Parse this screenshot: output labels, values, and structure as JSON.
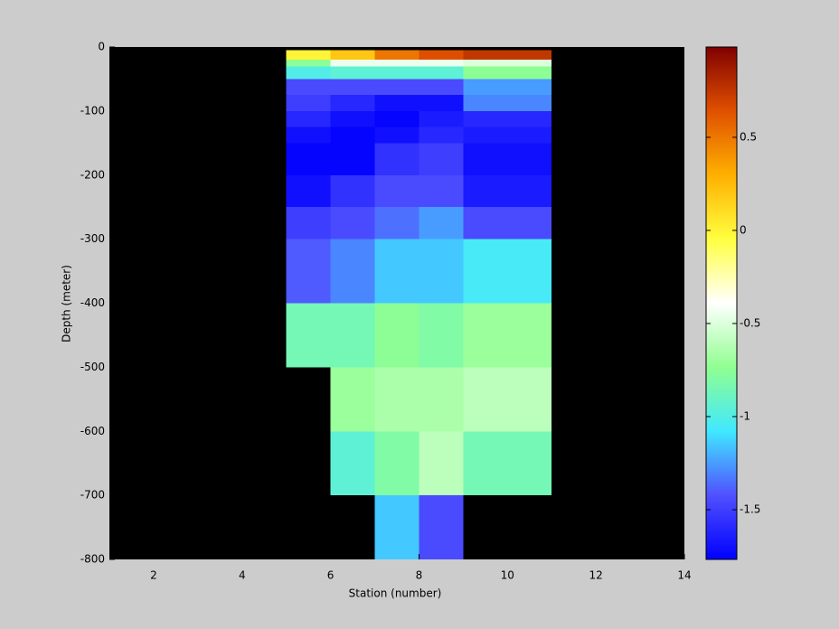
{
  "chart_data": {
    "type": "heatmap",
    "xlabel": "Station (number)",
    "ylabel": "Depth (meter)",
    "xlim": [
      1,
      14
    ],
    "ylim": [
      -800,
      0
    ],
    "xticks": [
      2,
      4,
      6,
      8,
      10,
      12,
      14
    ],
    "yticks": [
      -800,
      -700,
      -600,
      -500,
      -400,
      -300,
      -200,
      -100,
      0
    ],
    "x_edges": [
      5,
      6,
      7,
      8,
      9,
      11
    ],
    "y_edges": [
      -5,
      -20,
      -30,
      -50,
      -75,
      -100,
      -125,
      -150,
      -200,
      -250,
      -300,
      -400,
      -500,
      -600,
      -700,
      -800
    ],
    "z": [
      [
        0.0,
        0.2,
        0.5,
        0.65,
        0.75
      ],
      [
        -0.75,
        -0.45,
        -0.45,
        -0.45,
        -0.5
      ],
      [
        -1.0,
        -0.95,
        -0.95,
        -0.95,
        -0.75
      ],
      [
        -1.45,
        -1.45,
        -1.45,
        -1.45,
        -1.25
      ],
      [
        -1.5,
        -1.6,
        -1.7,
        -1.7,
        -1.3
      ],
      [
        -1.6,
        -1.7,
        -1.75,
        -1.65,
        -1.6
      ],
      [
        -1.7,
        -1.75,
        -1.7,
        -1.6,
        -1.65
      ],
      [
        -1.75,
        -1.75,
        -1.55,
        -1.5,
        -1.7
      ],
      [
        -1.7,
        -1.55,
        -1.45,
        -1.45,
        -1.65
      ],
      [
        -1.5,
        -1.45,
        -1.35,
        -1.25,
        -1.45
      ],
      [
        -1.4,
        -1.3,
        -1.15,
        -1.15,
        -1.05
      ],
      [
        -0.85,
        -0.85,
        -0.75,
        -0.8,
        -0.7
      ],
      [
        null,
        -0.7,
        -0.65,
        -0.65,
        -0.6
      ],
      [
        null,
        -0.95,
        -0.8,
        -0.6,
        -0.85
      ],
      [
        null,
        null,
        -1.15,
        -1.45,
        null
      ]
    ],
    "clim": [
      -1.767,
      0.985
    ],
    "cticks": [
      -1.5,
      -1,
      -0.5,
      0,
      0.5
    ],
    "colormap": [
      "#0000ff",
      "#5050ff",
      "#40e8ff",
      "#90ff90",
      "#ffffff",
      "#ffff40",
      "#ffb000",
      "#e05000",
      "#800000"
    ],
    "axes_color": "#000000"
  }
}
